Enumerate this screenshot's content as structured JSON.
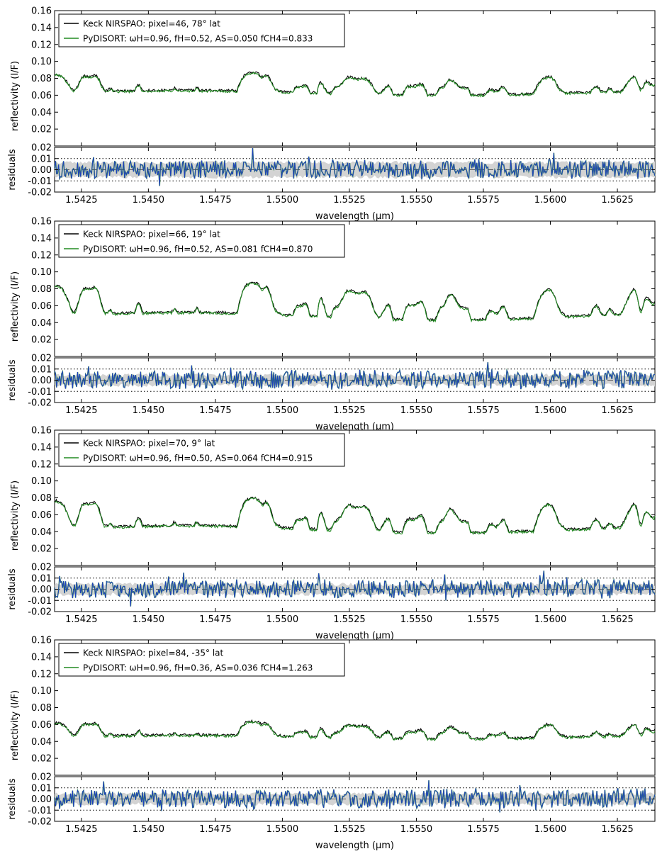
{
  "chart_data": [
    {
      "panel": 1,
      "type": "line",
      "xlabel": "wavelength (μm)",
      "ylabel": "reflectivity (I/F)",
      "ylim": [
        0.0,
        0.16
      ],
      "yticks": [
        "0.02",
        "0.04",
        "0.06",
        "0.08",
        "0.10",
        "0.12",
        "0.14",
        "0.16"
      ],
      "xlim": [
        1.5415,
        1.5639
      ],
      "xticks": [
        "1.5425",
        "1.5450",
        "1.5475",
        "1.5500",
        "1.5525",
        "1.5550",
        "1.5575",
        "1.5600",
        "1.5625"
      ],
      "legend_position": "upper-left",
      "legend": [
        {
          "text": "Keck NIRSPAO: pixel=46,  78° lat",
          "color": "#000000"
        },
        {
          "text": "PyDISORT: ωH=0.96,  fH=0.52,  AS=0.050  fCH4=0.833",
          "color": "#228B22"
        }
      ],
      "residuals": {
        "ylabel": "residuals",
        "ylim": [
          -0.02,
          0.02
        ],
        "yticks": [
          "-0.02",
          "-0.01",
          "0.00",
          "0.01",
          "0.02"
        ],
        "dotted_lines": [
          -0.01,
          0.01
        ],
        "series_color": "#1f3fbf",
        "band_color": "#d3d3d3"
      },
      "series": [
        {
          "name": "Keck NIRSPAO",
          "color": "#000000",
          "mean": 0.074,
          "amplitude": 0.018
        },
        {
          "name": "PyDISORT",
          "color": "#228B22",
          "mean": 0.073,
          "amplitude": 0.018
        }
      ]
    },
    {
      "panel": 2,
      "type": "line",
      "xlabel": "wavelength (μm)",
      "ylabel": "reflectivity (I/F)",
      "ylim": [
        0.0,
        0.16
      ],
      "yticks": [
        "0.02",
        "0.04",
        "0.06",
        "0.08",
        "0.10",
        "0.12",
        "0.14",
        "0.16"
      ],
      "xlim": [
        1.5415,
        1.5639
      ],
      "xticks": [
        "1.5425",
        "1.5450",
        "1.5475",
        "1.5500",
        "1.5525",
        "1.5550",
        "1.5575",
        "1.5600",
        "1.5625"
      ],
      "legend_position": "upper-left",
      "legend": [
        {
          "text": "Keck NIRSPAO: pixel=66,  19° lat",
          "color": "#000000"
        },
        {
          "text": "PyDISORT: ωH=0.96,  fH=0.52,  AS=0.081  fCH4=0.870",
          "color": "#228B22"
        }
      ],
      "residuals": {
        "ylabel": "residuals",
        "ylim": [
          -0.02,
          0.02
        ],
        "yticks": [
          "-0.02",
          "-0.01",
          "0.00",
          "0.01",
          "0.02"
        ],
        "dotted_lines": [
          -0.01,
          0.01
        ],
        "series_color": "#1f3fbf",
        "band_color": "#d3d3d3"
      },
      "series": [
        {
          "name": "Keck NIRSPAO",
          "color": "#000000",
          "mean": 0.066,
          "amplitude": 0.03
        },
        {
          "name": "PyDISORT",
          "color": "#228B22",
          "mean": 0.065,
          "amplitude": 0.03
        }
      ]
    },
    {
      "panel": 3,
      "type": "line",
      "xlabel": "wavelength (μm)",
      "ylabel": "reflectivity (I/F)",
      "ylim": [
        0.0,
        0.16
      ],
      "yticks": [
        "0.02",
        "0.04",
        "0.06",
        "0.08",
        "0.10",
        "0.12",
        "0.14",
        "0.16"
      ],
      "xlim": [
        1.5415,
        1.5639
      ],
      "xticks": [
        "1.5425",
        "1.5450",
        "1.5475",
        "1.5500",
        "1.5525",
        "1.5550",
        "1.5575",
        "1.5600",
        "1.5625"
      ],
      "legend_position": "upper-left",
      "legend": [
        {
          "text": "Keck NIRSPAO: pixel=70,   9° lat",
          "color": "#000000"
        },
        {
          "text": "PyDISORT: ωH=0.96,  fH=0.50,  AS=0.064  fCH4=0.915",
          "color": "#228B22"
        }
      ],
      "residuals": {
        "ylabel": "residuals",
        "ylim": [
          -0.02,
          0.02
        ],
        "yticks": [
          "-0.02",
          "-0.01",
          "0.00",
          "0.01",
          "0.02"
        ],
        "dotted_lines": [
          -0.01,
          0.01
        ],
        "series_color": "#1f3fbf",
        "band_color": "#d3d3d3"
      },
      "series": [
        {
          "name": "Keck NIRSPAO",
          "color": "#000000",
          "mean": 0.06,
          "amplitude": 0.028
        },
        {
          "name": "PyDISORT",
          "color": "#228B22",
          "mean": 0.059,
          "amplitude": 0.028
        }
      ]
    },
    {
      "panel": 4,
      "type": "line",
      "xlabel": "wavelength (μm)",
      "ylabel": "reflectivity (I/F)",
      "ylim": [
        0.0,
        0.16
      ],
      "yticks": [
        "0.02",
        "0.04",
        "0.06",
        "0.08",
        "0.10",
        "0.12",
        "0.14",
        "0.16"
      ],
      "xlim": [
        1.5415,
        1.5639
      ],
      "xticks": [
        "1.5425",
        "1.5450",
        "1.5475",
        "1.5500",
        "1.5525",
        "1.5550",
        "1.5575",
        "1.5600",
        "1.5625"
      ],
      "legend_position": "upper-left",
      "legend": [
        {
          "text": "Keck NIRSPAO: pixel=84, -35° lat",
          "color": "#000000"
        },
        {
          "text": "PyDISORT: ωH=0.96,  fH=0.36,  AS=0.036  fCH4=1.263",
          "color": "#228B22"
        }
      ],
      "residuals": {
        "ylabel": "residuals",
        "ylim": [
          -0.02,
          0.02
        ],
        "yticks": [
          "-0.02",
          "-0.01",
          "0.00",
          "0.01",
          "0.02"
        ],
        "dotted_lines": [
          -0.01,
          0.01
        ],
        "series_color": "#1f3fbf",
        "band_color": "#d3d3d3"
      },
      "series": [
        {
          "name": "Keck NIRSPAO",
          "color": "#000000",
          "mean": 0.054,
          "amplitude": 0.014
        },
        {
          "name": "PyDISORT",
          "color": "#228B22",
          "mean": 0.053,
          "amplitude": 0.014
        }
      ]
    }
  ]
}
